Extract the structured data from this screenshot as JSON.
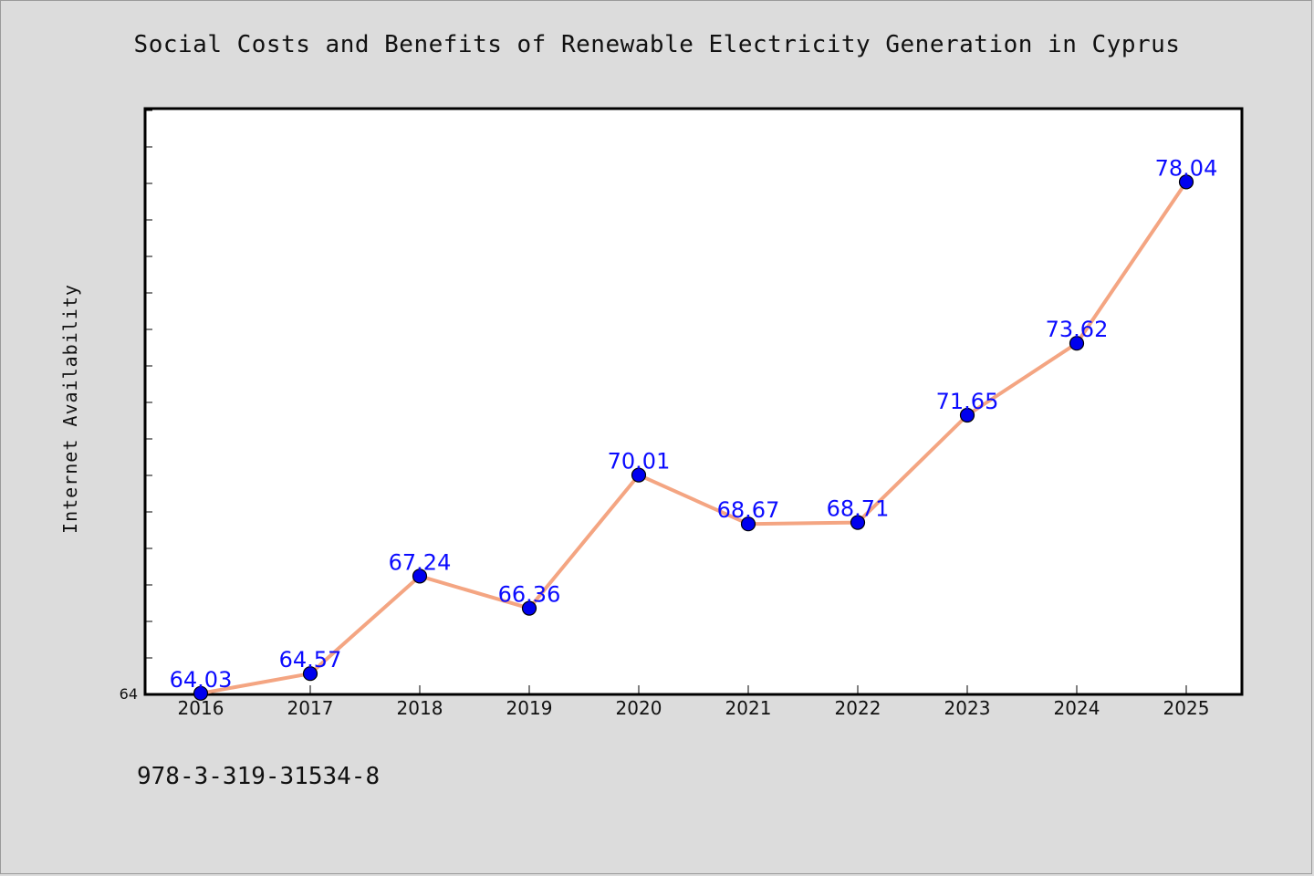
{
  "title": "Social Costs and Benefits of Renewable Electricity Generation in Cyprus",
  "footer_text": "978-3-319-31534-8",
  "colors": {
    "background": "#dcdcdc",
    "plot_background": "#ffffff",
    "line": "#f4a582",
    "marker": "#0000ee",
    "data_label": "#0b0bff"
  },
  "chart_data": {
    "type": "line",
    "title": "Social Costs and Benefits of Renewable Electricity Generation in Cyprus",
    "xlabel": "",
    "ylabel": "Internet Availability",
    "categories": [
      "2016",
      "2017",
      "2018",
      "2019",
      "2020",
      "2021",
      "2022",
      "2023",
      "2024",
      "2025"
    ],
    "values": [
      64.03,
      64.57,
      67.24,
      66.36,
      70.01,
      68.67,
      68.71,
      71.65,
      73.62,
      78.04
    ],
    "data_labels": [
      "64.03",
      "64.57",
      "67.24",
      "66.36",
      "70.01",
      "68.67",
      "68.71",
      "71.65",
      "73.62",
      "78.04"
    ],
    "y_tick_labels": [
      "64"
    ],
    "ylim": [
      64,
      80
    ],
    "grid": false,
    "legend": "none"
  }
}
